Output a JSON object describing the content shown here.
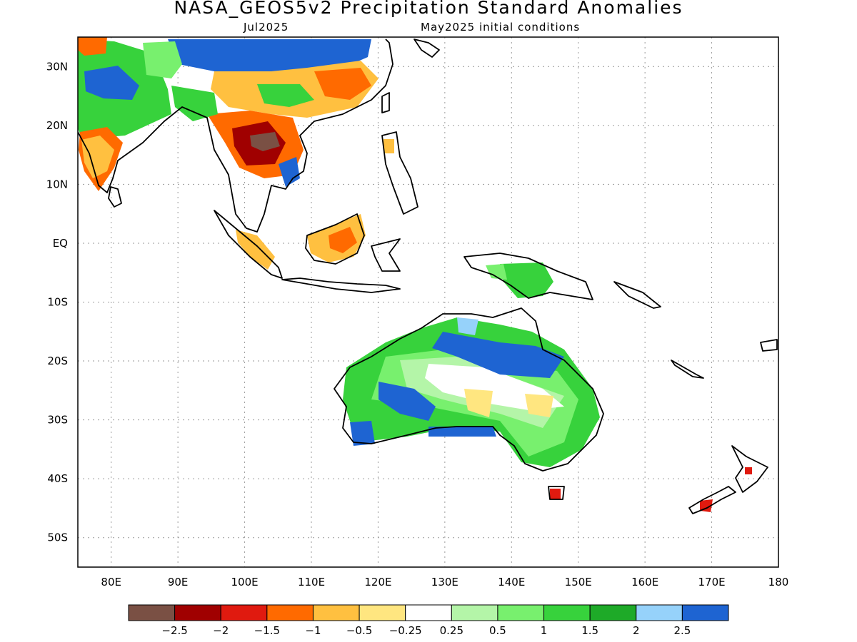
{
  "header": {
    "title": "NASA_GEOS5v2 Precipitation Standard Anomalies",
    "valid_month": "Jul2025",
    "init_conditions": "May2025 initial conditions"
  },
  "map": {
    "lon_range": [
      75,
      180
    ],
    "lat_range": [
      -55,
      35
    ],
    "lat_ticks": [
      "30N",
      "20N",
      "10N",
      "EQ",
      "10S",
      "20S",
      "30S",
      "40S",
      "50S"
    ],
    "lon_ticks": [
      "80E",
      "90E",
      "100E",
      "110E",
      "120E",
      "130E",
      "140E",
      "150E",
      "160E",
      "170E",
      "180"
    ]
  },
  "legend": {
    "colors": [
      "#7a5044",
      "#a00000",
      "#e01a0f",
      "#ff6a00",
      "#ffc040",
      "#ffe680",
      "#ffffff",
      "#b4f5a8",
      "#78f06e",
      "#37d23c",
      "#1eaa28",
      "#96d2fa",
      "#1e64d2"
    ],
    "labels": [
      "−2.5",
      "−2",
      "−1.5",
      "−1",
      "−0.5",
      "−0.25",
      "0.25",
      "0.5",
      "1",
      "1.5",
      "2",
      "2.5"
    ]
  }
}
